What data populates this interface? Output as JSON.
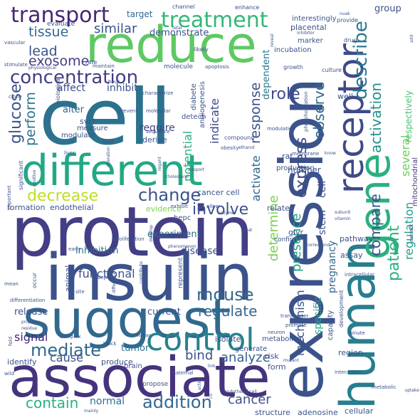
{
  "words": [
    {
      "text": "cell",
      "color": "#2c728e",
      "orientation": "horizontal"
    },
    {
      "text": "protein",
      "color": "#433e85",
      "orientation": "horizontal"
    },
    {
      "text": "insulin",
      "color": "#3b528b",
      "orientation": "horizontal"
    },
    {
      "text": "expression",
      "color": "#3b528b",
      "orientation": "vertical"
    },
    {
      "text": "associate",
      "color": "#46337e",
      "orientation": "horizontal"
    },
    {
      "text": "suggest",
      "color": "#31688e",
      "orientation": "horizontal"
    },
    {
      "text": "reduce",
      "color": "#5ec962",
      "orientation": "horizontal"
    },
    {
      "text": "human",
      "color": "#287d8e",
      "orientation": "vertical"
    },
    {
      "text": "different",
      "color": "#22a884",
      "orientation": "horizontal"
    },
    {
      "text": "gene",
      "color": "#2ab07f",
      "orientation": "vertical"
    },
    {
      "text": "receptor",
      "color": "#3e4a89",
      "orientation": "vertical"
    },
    {
      "text": "control",
      "color": "#26828e",
      "orientation": "horizontal"
    },
    {
      "text": "treatment",
      "color": "#35b779",
      "orientation": "horizontal"
    },
    {
      "text": "transport",
      "color": "#482677",
      "orientation": "horizontal"
    },
    {
      "text": "concentration",
      "color": "#433e85",
      "orientation": "horizontal"
    },
    {
      "text": "change",
      "color": "#3b528b",
      "orientation": "horizontal"
    },
    {
      "text": "mouse",
      "color": "#31688e",
      "orientation": "horizontal"
    },
    {
      "text": "mediate",
      "color": "#31688e",
      "orientation": "horizontal"
    },
    {
      "text": "addition",
      "color": "#31688e",
      "orientation": "horizontal"
    },
    {
      "text": "involve",
      "color": "#3b528b",
      "orientation": "horizontal"
    },
    {
      "text": "decrease",
      "color": "#bddf26",
      "orientation": "horizontal"
    },
    {
      "text": "describe",
      "color": "#2a788e",
      "orientation": "vertical"
    },
    {
      "text": "exosome",
      "color": "#433e85",
      "orientation": "horizontal"
    },
    {
      "text": "lead",
      "color": "#3b528b",
      "orientation": "horizontal"
    },
    {
      "text": "tissue",
      "color": "#31688e",
      "orientation": "horizontal"
    },
    {
      "text": "similar",
      "color": "#3b528b",
      "orientation": "horizontal"
    },
    {
      "text": "role",
      "color": "#3e4a89",
      "orientation": "horizontal"
    },
    {
      "text": "glucose",
      "color": "#3b528b",
      "orientation": "vertical"
    },
    {
      "text": "perform",
      "color": "#2c728e",
      "orientation": "vertical"
    },
    {
      "text": "activation",
      "color": "#21918c",
      "orientation": "vertical"
    },
    {
      "text": "observe",
      "color": "#31688e",
      "orientation": "vertical"
    },
    {
      "text": "express",
      "color": "#3e4a89",
      "orientation": "vertical"
    },
    {
      "text": "compare",
      "color": "#3b528b",
      "orientation": "vertical"
    },
    {
      "text": "patient",
      "color": "#2ab07f",
      "orientation": "vertical"
    },
    {
      "text": "regulation",
      "color": "#1f9e89",
      "orientation": "vertical"
    },
    {
      "text": "several",
      "color": "#6ccd5a",
      "orientation": "vertical"
    },
    {
      "text": "contain",
      "color": "#2ab07f",
      "orientation": "horizontal"
    },
    {
      "text": "regulate",
      "color": "#31688e",
      "orientation": "horizontal"
    },
    {
      "text": "bind",
      "color": "#3b528b",
      "orientation": "horizontal"
    },
    {
      "text": "analyze",
      "color": "#35608d",
      "orientation": "horizontal"
    },
    {
      "text": "cancer",
      "color": "#3b528b",
      "orientation": "horizontal"
    },
    {
      "text": "functional",
      "color": "#3b528b",
      "orientation": "horizontal"
    },
    {
      "text": "cause",
      "color": "#3b528b",
      "orientation": "horizontal"
    },
    {
      "text": "signal",
      "color": "#482677",
      "orientation": "horizontal"
    },
    {
      "text": "response",
      "color": "#3b528b",
      "orientation": "vertical"
    },
    {
      "text": "indicate",
      "color": "#3e4a89",
      "orientation": "vertical"
    },
    {
      "text": "potential",
      "color": "#2ab07f",
      "orientation": "vertical"
    },
    {
      "text": "activate",
      "color": "#31688e",
      "orientation": "vertical"
    },
    {
      "text": "determine",
      "color": "#7ad151",
      "orientation": "vertical"
    },
    {
      "text": "presence",
      "color": "#20a386",
      "orientation": "vertical"
    },
    {
      "text": "mechanism",
      "color": "#3b528b",
      "orientation": "vertical"
    },
    {
      "text": "specific",
      "color": "#22a884",
      "orientation": "vertical"
    },
    {
      "text": "pregnancy",
      "color": "#31688e",
      "orientation": "vertical"
    },
    {
      "text": "stem",
      "color": "#3b528b",
      "orientation": "vertical"
    },
    {
      "text": "cell",
      "color": "#3e4a89",
      "orientation": "vertical"
    },
    {
      "text": "dependent",
      "color": "#2a788e",
      "orientation": "vertical"
    },
    {
      "text": "respectively",
      "color": "#44bf70",
      "orientation": "vertical"
    },
    {
      "text": "mitochondrial",
      "color": "#46337e",
      "orientation": "vertical"
    },
    {
      "text": "affect",
      "color": "#3e4a89",
      "orientation": "horizontal"
    },
    {
      "text": "inhibit",
      "color": "#3b528b",
      "orientation": "horizontal"
    },
    {
      "text": "require",
      "color": "#433e85",
      "orientation": "horizontal"
    },
    {
      "text": "alter",
      "color": "#31688e",
      "orientation": "horizontal"
    },
    {
      "text": "experiment",
      "color": "#31688e",
      "orientation": "horizontal"
    },
    {
      "text": "disease",
      "color": "#3b528b",
      "orientation": "horizontal"
    },
    {
      "text": "inhibition",
      "color": "#2c728e",
      "orientation": "horizontal"
    },
    {
      "text": "release",
      "color": "#3b528b",
      "orientation": "horizontal"
    },
    {
      "text": "current",
      "color": "#3b528b",
      "orientation": "horizontal"
    },
    {
      "text": "tumor",
      "color": "#2c728e",
      "orientation": "horizontal"
    },
    {
      "text": "normal",
      "color": "#2c728e",
      "orientation": "horizontal"
    },
    {
      "text": "demonstrate",
      "color": "#3b528b",
      "orientation": "horizontal"
    },
    {
      "text": "target",
      "color": "#31688e",
      "orientation": "horizontal"
    },
    {
      "text": "group",
      "color": "#3b528b",
      "orientation": "horizontal"
    },
    {
      "text": "number",
      "color": "#3b528b",
      "orientation": "horizontal"
    },
    {
      "text": "rat",
      "color": "#3e4a89",
      "orientation": "horizontal"
    },
    {
      "text": "well",
      "color": "#3b528b",
      "orientation": "horizontal"
    },
    {
      "text": "pathway",
      "color": "#3b528b",
      "orientation": "horizontal"
    },
    {
      "text": "assay",
      "color": "#3b528b",
      "orientation": "horizontal"
    },
    {
      "text": "region",
      "color": "#3b528b",
      "orientation": "horizontal"
    },
    {
      "text": "structure",
      "color": "#3b528b",
      "orientation": "horizontal"
    },
    {
      "text": "adenosine",
      "color": "#3b528b",
      "orientation": "horizontal"
    },
    {
      "text": "cellular",
      "color": "#3b528b",
      "orientation": "horizontal"
    },
    {
      "text": "isolate",
      "color": "#3b528b",
      "orientation": "horizontal"
    },
    {
      "text": "metabolism",
      "color": "#3b528b",
      "orientation": "horizontal"
    },
    {
      "text": "generate",
      "color": "#3b528b",
      "orientation": "horizontal"
    },
    {
      "text": "risk",
      "color": "#3b528b",
      "orientation": "horizontal"
    },
    {
      "text": "form",
      "color": "#3b528b",
      "orientation": "horizontal"
    },
    {
      "text": "produce",
      "color": "#3b528b",
      "orientation": "horizontal"
    },
    {
      "text": "identify",
      "color": "#3b528b",
      "orientation": "horizontal"
    },
    {
      "text": "evidence",
      "color": "#7ad151",
      "orientation": "horizontal"
    },
    {
      "text": "formation",
      "color": "#3b528b",
      "orientation": "horizontal"
    },
    {
      "text": "endothelial",
      "color": "#3b528b",
      "orientation": "horizontal"
    },
    {
      "text": "cancer cell",
      "color": "#3b528b",
      "orientation": "horizontal"
    },
    {
      "text": "relate",
      "color": "#3b528b",
      "orientation": "horizontal"
    },
    {
      "text": "production",
      "color": "#3b528b",
      "orientation": "horizontal"
    },
    {
      "text": "incubation",
      "color": "#3b528b",
      "orientation": "horizontal"
    },
    {
      "text": "marker",
      "color": "#3b528b",
      "orientation": "horizontal"
    },
    {
      "text": "placental",
      "color": "#3b528b",
      "orientation": "horizontal"
    },
    {
      "text": "growth",
      "color": "#3b528b",
      "orientation": "horizontal"
    },
    {
      "text": "culture",
      "color": "#3b528b",
      "orientation": "horizontal"
    },
    {
      "text": "interestingly",
      "color": "#3b528b",
      "orientation": "horizontal"
    },
    {
      "text": "channel",
      "color": "#3b528b",
      "orientation": "horizontal"
    },
    {
      "text": "enhance",
      "color": "#3b528b",
      "orientation": "horizontal"
    },
    {
      "text": "evaluate",
      "color": "#3b528b",
      "orientation": "horizontal"
    },
    {
      "text": "provide",
      "color": "#3b528b",
      "orientation": "horizontal"
    },
    {
      "text": "drug",
      "color": "#3b528b",
      "orientation": "horizontal"
    },
    {
      "text": "inhibitor",
      "color": "#3b528b",
      "orientation": "horizontal"
    },
    {
      "text": "nuak",
      "color": "#3b528b",
      "orientation": "horizontal"
    },
    {
      "text": "likely",
      "color": "#3b528b",
      "orientation": "horizontal"
    },
    {
      "text": "rate",
      "color": "#3b528b",
      "orientation": "horizontal"
    },
    {
      "text": "vascular",
      "color": "#3b528b",
      "orientation": "horizontal"
    },
    {
      "text": "stimulate",
      "color": "#3b528b",
      "orientation": "horizontal"
    },
    {
      "text": "maintain",
      "color": "#3b528b",
      "orientation": "horizontal"
    },
    {
      "text": "molecule",
      "color": "#3b528b",
      "orientation": "horizontal"
    },
    {
      "text": "apoptosis",
      "color": "#3b528b",
      "orientation": "horizontal"
    },
    {
      "text": "fetal",
      "color": "#3b528b",
      "orientation": "horizontal"
    },
    {
      "text": "hour",
      "color": "#3b528b",
      "orientation": "horizontal"
    },
    {
      "text": "characterize",
      "color": "#3b528b",
      "orientation": "horizontal"
    },
    {
      "text": "prevent",
      "color": "#3b528b",
      "orientation": "horizontal"
    },
    {
      "text": "molecular",
      "color": "#3b528b",
      "orientation": "horizontal"
    },
    {
      "text": "sequence",
      "color": "#3b528b",
      "orientation": "horizontal"
    },
    {
      "text": "derive",
      "color": "#3b528b",
      "orientation": "horizontal"
    },
    {
      "text": "detect",
      "color": "#3b528b",
      "orientation": "horizontal"
    },
    {
      "text": "svct",
      "color": "#3b528b",
      "orientation": "horizontal"
    },
    {
      "text": "measure",
      "color": "#3b528b",
      "orientation": "horizontal"
    },
    {
      "text": "modulate",
      "color": "#3b528b",
      "orientation": "horizontal"
    },
    {
      "text": "diabete",
      "color": "#3b528b",
      "orientation": "vertical"
    },
    {
      "text": "angiogenesis",
      "color": "#3b528b",
      "orientation": "vertical"
    },
    {
      "text": "compound",
      "color": "#3b528b",
      "orientation": "horizontal"
    },
    {
      "text": "modulation",
      "color": "#3b528b",
      "orientation": "horizontal"
    },
    {
      "text": "phosphorylation",
      "color": "#3b528b",
      "orientation": "vertical"
    },
    {
      "text": "liver",
      "color": "#3b528b",
      "orientation": "horizontal"
    },
    {
      "text": "lipid",
      "color": "#3b528b",
      "orientation": "horizontal"
    },
    {
      "text": "obesity",
      "color": "#3b528b",
      "orientation": "horizontal"
    },
    {
      "text": "ethanol",
      "color": "#3b528b",
      "orientation": "horizontal"
    },
    {
      "text": "membrane",
      "color": "#3b528b",
      "orientation": "horizontal"
    },
    {
      "text": "know",
      "color": "#3b528b",
      "orientation": "horizontal"
    },
    {
      "text": "support",
      "color": "#3b528b",
      "orientation": "horizontal"
    },
    {
      "text": "cholesterol",
      "color": "#3b528b",
      "orientation": "horizontal"
    },
    {
      "text": "exhibit",
      "color": "#3b528b",
      "orientation": "horizontal"
    },
    {
      "text": "allow",
      "color": "#3b528b",
      "orientation": "horizontal"
    },
    {
      "text": "enzyme",
      "color": "#3b528b",
      "orientation": "horizontal"
    },
    {
      "text": "hepc",
      "color": "#3b528b",
      "orientation": "horizontal"
    },
    {
      "text": "glyr",
      "color": "#3b528b",
      "orientation": "horizontal"
    },
    {
      "text": "confirm",
      "color": "#3b528b",
      "orientation": "horizontal"
    },
    {
      "text": "correspond",
      "color": "#3b528b",
      "orientation": "horizontal"
    },
    {
      "text": "subunit",
      "color": "#3b528b",
      "orientation": "horizontal"
    },
    {
      "text": "vitamin",
      "color": "#3b528b",
      "orientation": "horizontal"
    },
    {
      "text": "extract",
      "color": "#3b528b",
      "orientation": "horizontal"
    },
    {
      "text": "proliferation",
      "color": "#3b528b",
      "orientation": "vertical"
    },
    {
      "text": "develop",
      "color": "#3b528b",
      "orientation": "horizontal"
    },
    {
      "text": "phenomenon",
      "color": "#3b528b",
      "orientation": "vertical"
    },
    {
      "text": "early",
      "color": "#3b528b",
      "orientation": "horizontal"
    },
    {
      "text": "occur",
      "color": "#3b528b",
      "orientation": "horizontal"
    },
    {
      "text": "animal",
      "color": "#3b528b",
      "orientation": "vertical"
    },
    {
      "text": "capacity",
      "color": "#3b528b",
      "orientation": "vertical"
    },
    {
      "text": "development",
      "color": "#3b528b",
      "orientation": "vertical"
    },
    {
      "text": "intracellular",
      "color": "#3b528b",
      "orientation": "vertical"
    },
    {
      "text": "transporter",
      "color": "#3b528b",
      "orientation": "horizontal"
    },
    {
      "text": "promote",
      "color": "#3b528b",
      "orientation": "horizontal"
    },
    {
      "text": "neuron",
      "color": "#3b528b",
      "orientation": "horizontal"
    },
    {
      "text": "minute",
      "color": "#3b528b",
      "orientation": "horizontal"
    },
    {
      "text": "interaction",
      "color": "#3b528b",
      "orientation": "horizontal"
    },
    {
      "text": "metabolic",
      "color": "#3b528b",
      "orientation": "horizontal"
    },
    {
      "text": "uptake",
      "color": "#3b528b",
      "orientation": "horizontal"
    },
    {
      "text": "mutant",
      "color": "#3b528b",
      "orientation": "horizontal"
    },
    {
      "text": "propose",
      "color": "#3b528b",
      "orientation": "horizontal"
    },
    {
      "text": "brain",
      "color": "#3b528b",
      "orientation": "horizontal"
    },
    {
      "text": "maternal",
      "color": "#3b528b",
      "orientation": "horizontal"
    },
    {
      "text": "link",
      "color": "#3b528b",
      "orientation": "horizontal"
    },
    {
      "text": "block",
      "color": "#3b528b",
      "orientation": "horizontal"
    },
    {
      "text": "complex",
      "color": "#3b528b",
      "orientation": "horizontal"
    },
    {
      "text": "wild",
      "color": "#3b528b",
      "orientation": "horizontal"
    },
    {
      "text": "mainly",
      "color": "#3b528b",
      "orientation": "horizontal"
    },
    {
      "text": "endothelial cell",
      "color": "#3b528b",
      "orientation": "horizontal"
    },
    {
      "text": "woman",
      "color": "#3b528b",
      "orientation": "horizontal"
    },
    {
      "text": "differentiation",
      "color": "#3b528b",
      "orientation": "horizontal"
    },
    {
      "text": "mean",
      "color": "#3b528b",
      "orientation": "horizontal"
    },
    {
      "text": "site",
      "color": "#3b528b",
      "orientation": "horizontal"
    },
    {
      "text": "fold",
      "color": "#3b528b",
      "orientation": "horizontal"
    },
    {
      "text": "property",
      "color": "#3b528b",
      "orientation": "vertical"
    },
    {
      "text": "residue",
      "color": "#3b528b",
      "orientation": "horizontal"
    },
    {
      "text": "positive",
      "color": "#3b528b",
      "orientation": "horizontal"
    },
    {
      "text": "physiological",
      "color": "#3b528b",
      "orientation": "vertical"
    },
    {
      "text": "biological",
      "color": "#3b528b",
      "orientation": "horizontal"
    },
    {
      "text": "significant",
      "color": "#3b528b",
      "orientation": "vertical"
    },
    {
      "text": "important",
      "color": "#3b528b",
      "orientation": "vertical"
    },
    {
      "text": "difference",
      "color": "#3b528b",
      "orientation": "vertical"
    },
    {
      "text": "represent",
      "color": "#3b528b",
      "orientation": "vertical"
    },
    {
      "text": "contribute",
      "color": "#3b528b",
      "orientation": "vertical"
    },
    {
      "text": "depend",
      "color": "#3b528b",
      "orientation": "vertical"
    },
    {
      "text": "treat",
      "color": "#3b528b",
      "orientation": "horizontal"
    },
    {
      "text": "add",
      "color": "#3b528b",
      "orientation": "horizontal"
    },
    {
      "text": "alteration",
      "color": "#3b528b",
      "orientation": "vertical"
    },
    {
      "text": "regard",
      "color": "#3b528b",
      "orientation": "vertical"
    },
    {
      "text": "reveal",
      "color": "#3b528b",
      "orientation": "vertical"
    },
    {
      "text": "clone",
      "color": "#3b528b",
      "orientation": "vertical"
    },
    {
      "text": "co",
      "color": "#3b528b",
      "orientation": "horizontal"
    },
    {
      "text": "action",
      "color": "#3b528b",
      "orientation": "vertical"
    },
    {
      "text": "incubate",
      "color": "#3b528b",
      "orientation": "vertical"
    }
  ]
}
